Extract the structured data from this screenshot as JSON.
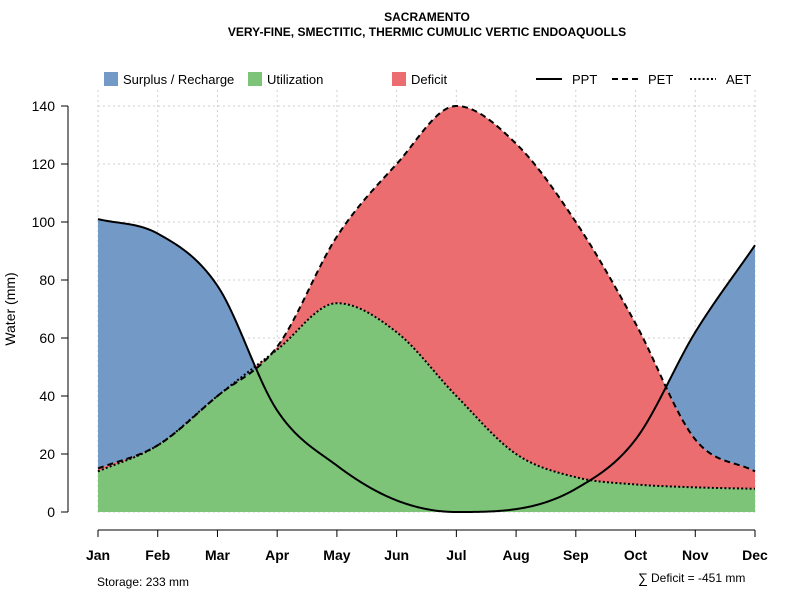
{
  "chart_data": {
    "type": "area",
    "title": "SACRAMENTO",
    "subtitle": "VERY-FINE, SMECTITIC, THERMIC CUMULIC VERTIC ENDOAQUOLLS",
    "xlabel": "",
    "ylabel": "Water (mm)",
    "ylim": [
      0,
      140
    ],
    "yticks": [
      0,
      20,
      40,
      60,
      80,
      100,
      120,
      140
    ],
    "categories": [
      "Jan",
      "Feb",
      "Mar",
      "Apr",
      "May",
      "Jun",
      "Jul",
      "Aug",
      "Sep",
      "Oct",
      "Nov",
      "Dec"
    ],
    "grid": true,
    "legend": {
      "fills": [
        {
          "label": "Surplus / Recharge",
          "color": "#7399C6"
        },
        {
          "label": "Utilization",
          "color": "#7DC478"
        },
        {
          "label": "Deficit",
          "color": "#EB6D6F"
        }
      ],
      "lines": [
        {
          "label": "PPT",
          "style": "solid"
        },
        {
          "label": "PET",
          "style": "dashed"
        },
        {
          "label": "AET",
          "style": "dotted"
        }
      ]
    },
    "series": [
      {
        "name": "PPT",
        "values": [
          101,
          96,
          78,
          35,
          16,
          4,
          0,
          1,
          8,
          25,
          62,
          92
        ]
      },
      {
        "name": "PET",
        "values": [
          15,
          23,
          40,
          57,
          95,
          120,
          140,
          127,
          100,
          65,
          25,
          14
        ]
      },
      {
        "name": "AET",
        "values": [
          14,
          23,
          40,
          56,
          72,
          62,
          40,
          20,
          12,
          9.5,
          8.5,
          8
        ]
      }
    ],
    "annotations": {
      "storage": "Storage: 233 mm",
      "deficit_symbol": "∑",
      "deficit": "Deficit = -451 mm"
    }
  }
}
